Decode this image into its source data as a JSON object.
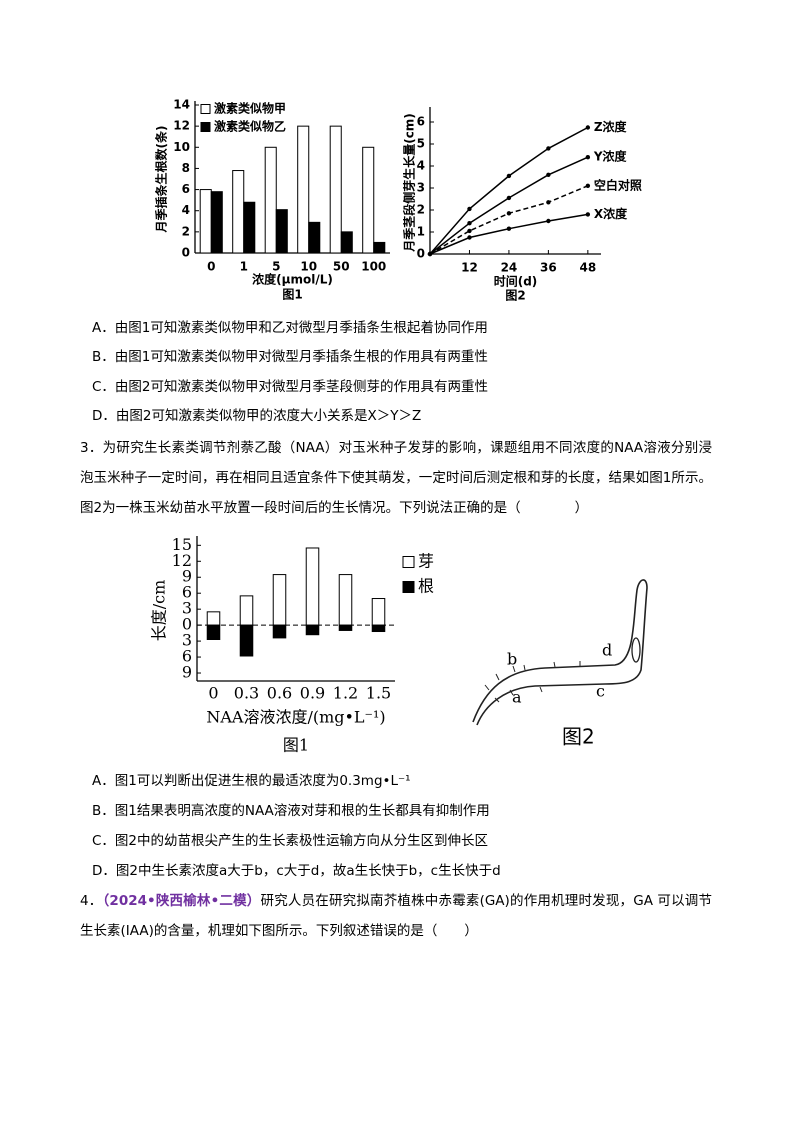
{
  "chart_data": [
    {
      "type": "bar",
      "barmode": "group",
      "caption": "图1",
      "x_label": "浓度(μmol/L)",
      "y_label": "月季插条生根数(条)",
      "categories": [
        "0",
        "1",
        "5",
        "10",
        "50",
        "100"
      ],
      "series": [
        {
          "name": "激素类似物甲",
          "color": "#ffffff",
          "values": [
            6,
            7.8,
            10,
            12,
            12,
            10
          ]
        },
        {
          "name": "激素类似物乙",
          "color": "#000000",
          "values": [
            5.8,
            4.8,
            4.1,
            2.9,
            2,
            1
          ]
        }
      ],
      "ylim": [
        0,
        14
      ],
      "yticks": [
        0,
        2,
        4,
        6,
        8,
        10,
        12,
        14
      ],
      "legend": "upper left"
    },
    {
      "type": "line",
      "caption": "图2",
      "x_label": "时间(d)",
      "y_label": "月季茎段侧芽生长量(cm)",
      "x": [
        0,
        12,
        24,
        36,
        48
      ],
      "series": [
        {
          "name": "Z浓度",
          "color": "#000000",
          "dash": false,
          "values": [
            0,
            2.05,
            3.55,
            4.8,
            5.75
          ]
        },
        {
          "name": "Y浓度",
          "color": "#000000",
          "dash": false,
          "values": [
            0,
            1.4,
            2.55,
            3.6,
            4.4
          ]
        },
        {
          "name": "空白对照",
          "color": "#000000",
          "dash": true,
          "values": [
            0,
            1.05,
            1.85,
            2.35,
            3.1
          ]
        },
        {
          "name": "X浓度",
          "color": "#000000",
          "dash": false,
          "values": [
            0,
            0.75,
            1.15,
            1.5,
            1.8
          ]
        }
      ],
      "xlim": [
        0,
        52
      ],
      "xticks": [
        12,
        24,
        36,
        48
      ],
      "ylim": [
        0,
        6.5
      ],
      "yticks": [
        0,
        1,
        2,
        3,
        4,
        5,
        6
      ],
      "legend": "line end"
    },
    {
      "type": "bar",
      "barmode": "relative",
      "caption": "图1",
      "x_label": "NAA溶液浓度/(mg•L⁻¹)",
      "y_label": "长度/cm",
      "categories": [
        "0",
        "0.3",
        "0.6",
        "0.9",
        "1.2",
        "1.5"
      ],
      "series": [
        {
          "name": "芽",
          "color": "#ffffff",
          "values": [
            2.5,
            5.5,
            9.5,
            14.5,
            9.5,
            5
          ]
        },
        {
          "name": "根",
          "color": "#000000",
          "values": [
            -2.7,
            -5.8,
            -2.4,
            -1.8,
            -1,
            -1.2
          ]
        }
      ],
      "ylim": [
        -10.5,
        16
      ],
      "yticks": [
        {
          "value": -9,
          "label": "9"
        },
        {
          "value": -6,
          "label": "6"
        },
        {
          "value": -3,
          "label": "3"
        },
        0,
        3,
        6,
        9,
        12,
        15
      ],
      "legend": "upper right"
    }
  ],
  "document": {
    "q2_options": [
      "A．由图1可知激素类似物甲和乙对微型月季插条生根起着协同作用",
      "B．由图1可知激素类似物甲对微型月季插条生根的作用具有两重性",
      "C．由图2可知激素类似物甲对微型月季茎段侧芽的作用具有两重性",
      "D．由图2可知激素类似物甲的浓度大小关系是X＞Y＞Z"
    ],
    "q3": {
      "text": "3．为研究生长素类调节剂萘乙酸（NAA）对玉米种子发芽的影响，课题组用不同浓度的NAA溶液分别浸泡玉米种子一定时间，再在相同且适宜条件下使其萌发，一定时间后测定根和芽的长度，结果如图1所示。图2为一株玉米幼苗水平放置一段时间后的生长情况。下列说法正确的是（　　　　）",
      "options": [
        "A．图1可以判断出促进生根的最适浓度为0.3mg•L⁻¹",
        "B．图1结果表明高浓度的NAA溶液对芽和根的生长都具有抑制作用",
        "C．图2中的幼苗根尖产生的生长素极性运输方向从分生区到伸长区",
        "D．图2中生长素浓度a大于b，c大于d，故a生长快于b，c生长快于d"
      ]
    },
    "figure2": {
      "a": "a",
      "b": "b",
      "c": "c",
      "d": "d",
      "caption": "图2"
    },
    "q4": {
      "number": "4．",
      "source": "（2024•陕西榆林•二模）",
      "text": "研究人员在研究拟南芥植株中赤霉素(GA)的作用机理时发现，GA 可以调节生长素(IAA)的含量，机理如下图所示。下列叙述错误的是（　　）"
    }
  }
}
